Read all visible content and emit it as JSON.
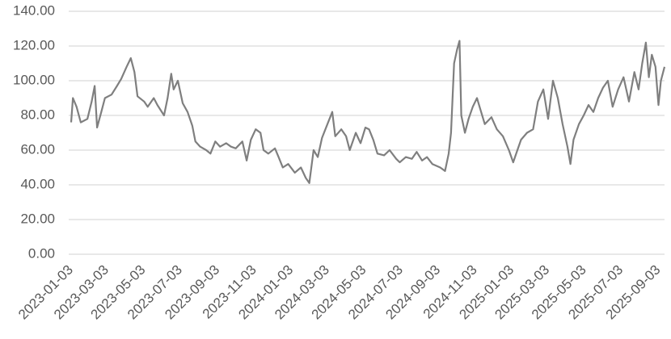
{
  "chart_data": {
    "type": "line",
    "x": [
      "2023-01-03",
      "2023-01-06",
      "2023-01-12",
      "2023-01-19",
      "2023-01-30",
      "2023-02-06",
      "2023-02-11",
      "2023-02-15",
      "2023-02-22",
      "2023-02-28",
      "2023-03-11",
      "2023-03-20",
      "2023-03-27",
      "2023-04-05",
      "2023-04-12",
      "2023-04-18",
      "2023-04-23",
      "2023-05-04",
      "2023-05-10",
      "2023-05-20",
      "2023-05-26",
      "2023-06-06",
      "2023-06-12",
      "2023-06-18",
      "2023-06-22",
      "2023-06-29",
      "2023-07-07",
      "2023-07-15",
      "2023-07-23",
      "2023-07-28",
      "2023-08-05",
      "2023-08-15",
      "2023-08-22",
      "2023-08-30",
      "2023-09-07",
      "2023-09-17",
      "2023-09-25",
      "2023-10-03",
      "2023-10-14",
      "2023-10-21",
      "2023-10-28",
      "2023-11-05",
      "2023-11-13",
      "2023-11-18",
      "2023-11-26",
      "2023-12-07",
      "2023-12-13",
      "2023-12-20",
      "2023-12-29",
      "2024-01-09",
      "2024-01-19",
      "2024-01-27",
      "2024-02-02",
      "2024-02-09",
      "2024-02-16",
      "2024-02-23",
      "2024-03-03",
      "2024-03-11",
      "2024-03-16",
      "2024-03-26",
      "2024-04-03",
      "2024-04-09",
      "2024-04-19",
      "2024-04-27",
      "2024-05-05",
      "2024-05-11",
      "2024-05-18",
      "2024-05-25",
      "2024-06-05",
      "2024-06-14",
      "2024-06-25",
      "2024-07-01",
      "2024-07-11",
      "2024-07-21",
      "2024-07-29",
      "2024-08-07",
      "2024-08-15",
      "2024-08-24",
      "2024-09-06",
      "2024-09-14",
      "2024-09-20",
      "2024-09-24",
      "2024-09-29",
      "2024-10-04",
      "2024-10-08",
      "2024-10-11",
      "2024-10-17",
      "2024-10-23",
      "2024-10-30",
      "2024-11-06",
      "2024-11-12",
      "2024-11-19",
      "2024-11-30",
      "2024-12-09",
      "2024-12-19",
      "2024-12-29",
      "2025-01-05",
      "2025-01-12",
      "2025-01-18",
      "2025-01-28",
      "2025-02-07",
      "2025-02-15",
      "2025-02-24",
      "2025-03-04",
      "2025-03-12",
      "2025-03-20",
      "2025-03-28",
      "2025-04-05",
      "2025-04-10",
      "2025-04-15",
      "2025-04-24",
      "2025-05-02",
      "2025-05-10",
      "2025-05-18",
      "2025-05-26",
      "2025-06-03",
      "2025-06-11",
      "2025-06-19",
      "2025-06-28",
      "2025-07-07",
      "2025-07-16",
      "2025-07-25",
      "2025-08-01",
      "2025-08-07",
      "2025-08-13",
      "2025-08-18",
      "2025-08-23",
      "2025-08-29",
      "2025-09-03",
      "2025-09-07",
      "2025-09-13"
    ],
    "series": [
      {
        "color": "#7f7f7f",
        "values": [
          76,
          90,
          85,
          76,
          78,
          88,
          97,
          73,
          82,
          90,
          92,
          97,
          101,
          108,
          113,
          105,
          91,
          88,
          85,
          90,
          86,
          80,
          90,
          104,
          95,
          100,
          87,
          82,
          74,
          65,
          62,
          60,
          58,
          65,
          62,
          64,
          62,
          61,
          65,
          54,
          66,
          72,
          70,
          60,
          58,
          61,
          56,
          50,
          52,
          47,
          50,
          44,
          41,
          60,
          56,
          67,
          75,
          82,
          68,
          72,
          68,
          60,
          70,
          64,
          73,
          72,
          66,
          58,
          57,
          60,
          55,
          53,
          56,
          55,
          59,
          54,
          56,
          52,
          50,
          48,
          58,
          70,
          110,
          118,
          123,
          80,
          70,
          78,
          85,
          90,
          83,
          75,
          79,
          72,
          68,
          60,
          53,
          60,
          66,
          70,
          72,
          88,
          95,
          78,
          100,
          90,
          75,
          62,
          52,
          66,
          75,
          80,
          86,
          82,
          90,
          96,
          100,
          85,
          95,
          102,
          88,
          105,
          95,
          110,
          122,
          102,
          115,
          108,
          86,
          100,
          108
        ]
      }
    ],
    "xlim": [
      "2023-01-03",
      "2025-09-13"
    ],
    "xticks": [
      "2023-01-03",
      "2023-03-03",
      "2023-05-03",
      "2023-07-03",
      "2023-09-03",
      "2023-11-03",
      "2024-01-03",
      "2024-03-03",
      "2024-05-03",
      "2024-07-03",
      "2024-09-03",
      "2024-11-03",
      "2025-01-03",
      "2025-03-03",
      "2025-05-03",
      "2025-07-03",
      "2025-09-03"
    ],
    "ylim": [
      0,
      140
    ],
    "yticks": [
      {
        "value": 0,
        "label": "0.00"
      },
      {
        "value": 20,
        "label": "20.00"
      },
      {
        "value": 40,
        "label": "40.00"
      },
      {
        "value": 60,
        "label": "60.00"
      },
      {
        "value": 80,
        "label": "80.00"
      },
      {
        "value": 100,
        "label": "100.00"
      },
      {
        "value": 120,
        "label": "120.00"
      },
      {
        "value": 140,
        "label": "140.00"
      }
    ],
    "grid": true
  }
}
